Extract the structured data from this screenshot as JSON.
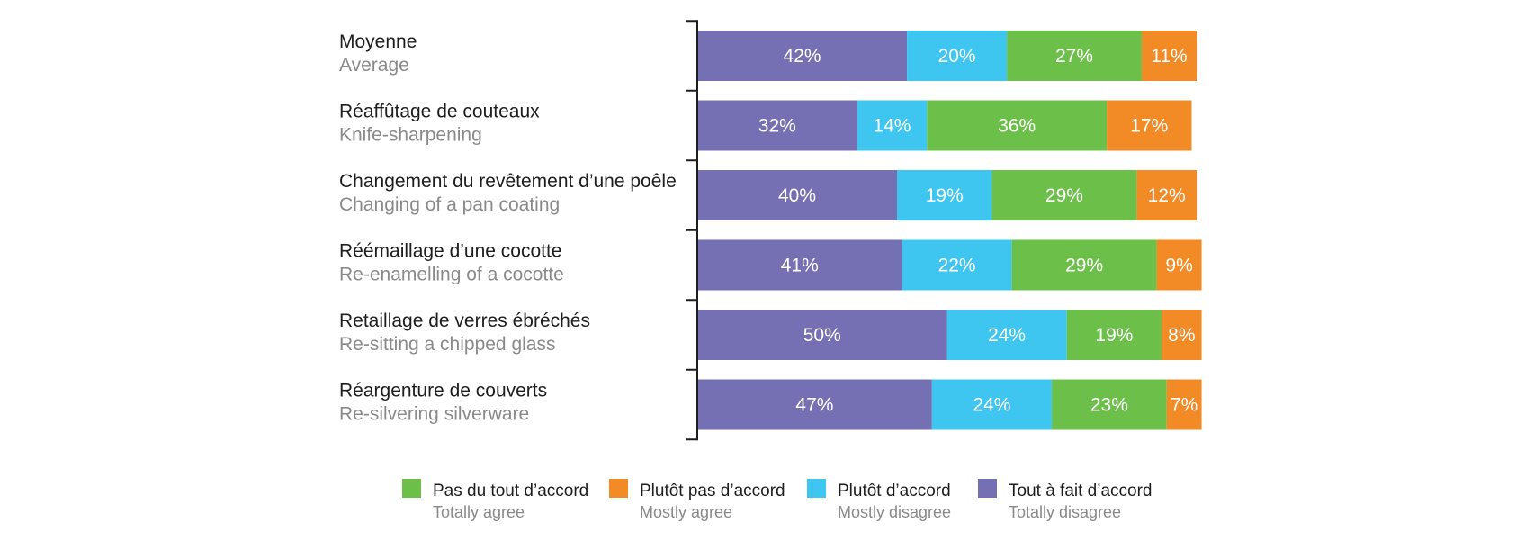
{
  "chart_data": {
    "type": "bar",
    "orientation": "horizontal",
    "stacked": true,
    "title": "",
    "xlabel": "",
    "ylabel": "",
    "xlim": [
      0,
      100
    ],
    "grid": false,
    "legend_position": "bottom",
    "categories": [
      {
        "fr": "Moyenne",
        "en": "Average"
      },
      {
        "fr": "Réaffûtage de couteaux",
        "en": "Knife-sharpening"
      },
      {
        "fr": "Changement du revêtement d’une poêle",
        "en": "Changing of a pan coating"
      },
      {
        "fr": "Réémaillage d’une cocotte",
        "en": "Re-enamelling of a cocotte"
      },
      {
        "fr": "Retaillage de verres ébréchés",
        "en": "Re-sitting a chipped glass"
      },
      {
        "fr": "Réargenture de couverts",
        "en": "Re-silvering silverware"
      }
    ],
    "series": [
      {
        "name": "Tout à fait d’accord",
        "name_en": "Totally disagree",
        "color": "#7570b3",
        "values": [
          42,
          32,
          40,
          41,
          50,
          47
        ],
        "labels": [
          "42%",
          "32%",
          "40%",
          "41%",
          "50%",
          "47%"
        ]
      },
      {
        "name": "Plutôt d’accord",
        "name_en": "Mostly disagree",
        "color": "#3ec6f0",
        "values": [
          20,
          14,
          19,
          22,
          24,
          24
        ],
        "labels": [
          "20%",
          "14%",
          "19%",
          "22%",
          "24%",
          "24%"
        ]
      },
      {
        "name": "Pas du tout d’accord",
        "name_en": "Totally agree",
        "color": "#6cc04a",
        "values": [
          27,
          36,
          29,
          29,
          19,
          23
        ],
        "labels": [
          "27%",
          "36%",
          "29%",
          "29%",
          "19%",
          "23%"
        ]
      },
      {
        "name": "Plutôt pas d’accord",
        "name_en": "Mostly agree",
        "color": "#f28a25",
        "values": [
          11,
          17,
          12,
          9,
          8,
          7
        ],
        "labels": [
          "11%",
          "17%",
          "12%",
          "9%",
          "8%",
          "7%"
        ]
      }
    ],
    "legend_order": [
      2,
      3,
      1,
      0
    ]
  }
}
